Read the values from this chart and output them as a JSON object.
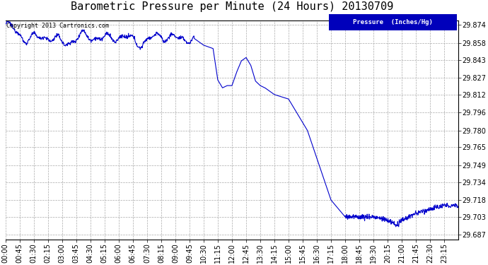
{
  "title": "Barometric Pressure per Minute (24 Hours) 20130709",
  "copyright": "Copyright 2013 Cartronics.com",
  "legend_label": "Pressure  (Inches/Hg)",
  "yticks": [
    29.687,
    29.703,
    29.718,
    29.734,
    29.749,
    29.765,
    29.78,
    29.796,
    29.812,
    29.827,
    29.843,
    29.858,
    29.874
  ],
  "ylim": [
    29.683,
    29.878
  ],
  "xtick_labels": [
    "00:00",
    "00:45",
    "01:30",
    "02:15",
    "03:00",
    "03:45",
    "04:30",
    "05:15",
    "06:00",
    "06:45",
    "07:30",
    "08:15",
    "09:00",
    "09:45",
    "10:30",
    "11:15",
    "12:00",
    "12:45",
    "13:30",
    "14:15",
    "15:00",
    "15:45",
    "16:30",
    "17:15",
    "18:00",
    "18:45",
    "19:30",
    "20:15",
    "21:00",
    "21:45",
    "22:30",
    "23:15"
  ],
  "line_color": "#0000cc",
  "bg_color": "#ffffff",
  "grid_color": "#aaaaaa",
  "title_fontsize": 11,
  "tick_fontsize": 7,
  "line_width": 0.8,
  "legend_bg": "#0000bb",
  "legend_fg": "#ffffff"
}
